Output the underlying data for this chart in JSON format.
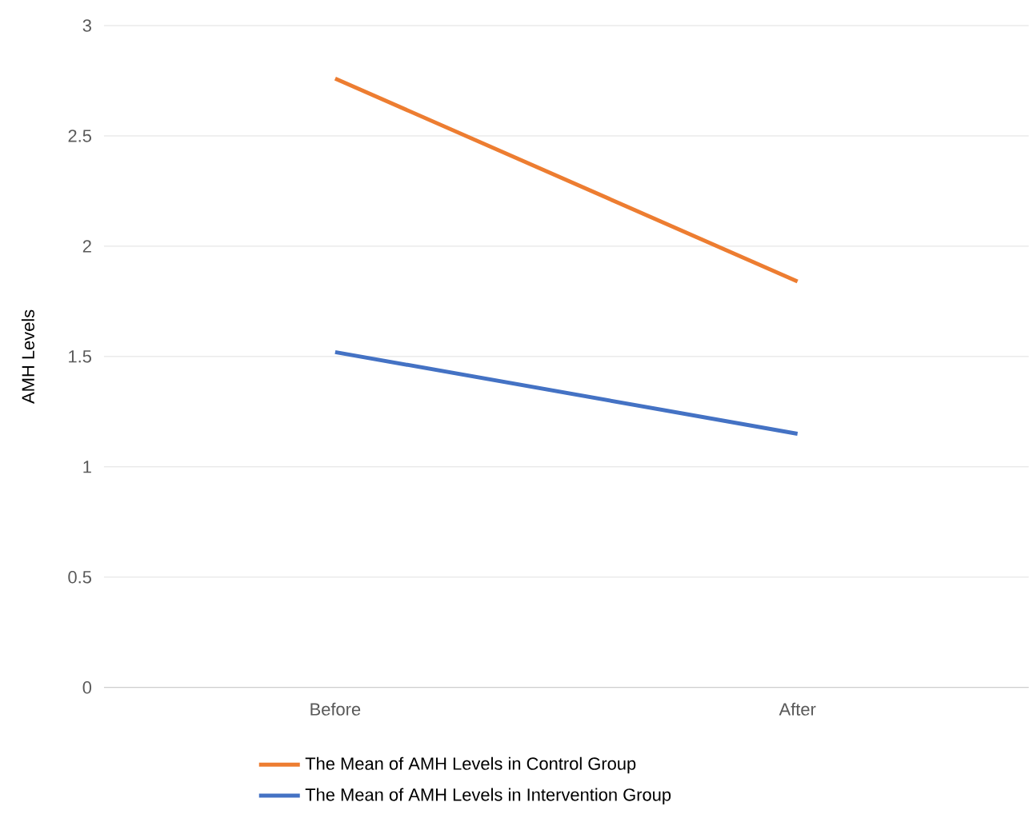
{
  "chart_data": {
    "type": "line",
    "ylabel": "AMH Levels",
    "categories": [
      "Before",
      "After"
    ],
    "series": [
      {
        "name": "The Mean of AMH Levels in Control Group",
        "color": "#ed7d31",
        "values": [
          2.76,
          1.84
        ]
      },
      {
        "name": "The Mean of AMH Levels in Intervention Group",
        "color": "#4472c4",
        "values": [
          1.52,
          1.15
        ]
      }
    ],
    "ylim": [
      0,
      3
    ],
    "yticks": [
      0,
      0.5,
      1,
      1.5,
      2,
      2.5,
      3
    ],
    "grid": "y",
    "legend": "bottom",
    "marker": "none",
    "line_style": "solid"
  }
}
